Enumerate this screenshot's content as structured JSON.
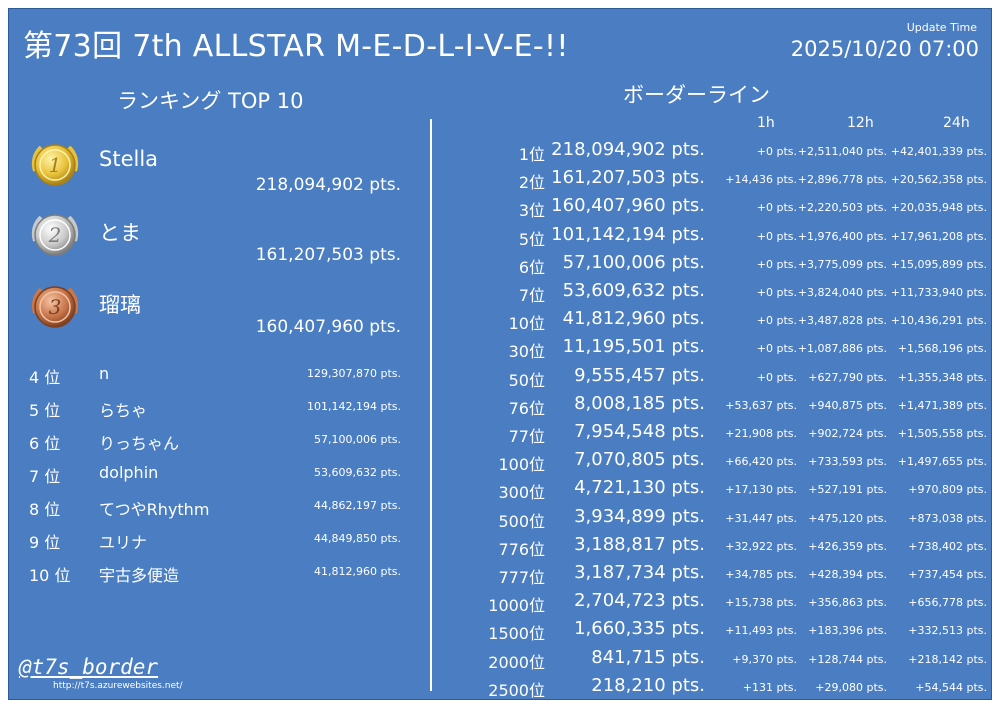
{
  "header": {
    "title": "第73回 7th ALLSTAR M-E-D-L-I-V-E-!!",
    "update_label": "Update Time",
    "update_time": "2025/10/20 07:00"
  },
  "ranking": {
    "heading": "ランキング TOP 10",
    "top3": [
      {
        "medal": "gold",
        "medal_text": "1",
        "name": "Stella",
        "score": "218,094,902 pts."
      },
      {
        "medal": "silver",
        "medal_text": "2",
        "name": "とま",
        "score": "161,207,503 pts."
      },
      {
        "medal": "bronze",
        "medal_text": "3",
        "name": "瑠璃",
        "score": "160,407,960 pts."
      }
    ],
    "rows": [
      {
        "rank": "4 位",
        "name": "n",
        "score": "129,307,870 pts."
      },
      {
        "rank": "5 位",
        "name": "らちゃ",
        "score": "101,142,194 pts."
      },
      {
        "rank": "6 位",
        "name": "りっちゃん",
        "score": "57,100,006 pts."
      },
      {
        "rank": "7 位",
        "name": "dolphin",
        "score": "53,609,632 pts."
      },
      {
        "rank": "8 位",
        "name": "てつやRhythm",
        "score": "44,862,197 pts."
      },
      {
        "rank": "9 位",
        "name": "ユリナ",
        "score": "44,849,850 pts."
      },
      {
        "rank": "10 位",
        "name": "宇古多便造",
        "score": "41,812,960 pts."
      }
    ]
  },
  "border": {
    "heading": "ボーダーライン",
    "columns": [
      "1h",
      "12h",
      "24h"
    ],
    "rows": [
      {
        "rank": "1位",
        "score": "218,094,902 pts.",
        "d1": "+0 pts.",
        "d12": "+2,511,040 pts.",
        "d24": "+42,401,339 pts."
      },
      {
        "rank": "2位",
        "score": "161,207,503 pts.",
        "d1": "+14,436 pts.",
        "d12": "+2,896,778 pts.",
        "d24": "+20,562,358 pts."
      },
      {
        "rank": "3位",
        "score": "160,407,960 pts.",
        "d1": "+0 pts.",
        "d12": "+2,220,503 pts.",
        "d24": "+20,035,948 pts."
      },
      {
        "rank": "5位",
        "score": "101,142,194 pts.",
        "d1": "+0 pts.",
        "d12": "+1,976,400 pts.",
        "d24": "+17,961,208 pts."
      },
      {
        "rank": "6位",
        "score": "57,100,006 pts.",
        "d1": "+0 pts.",
        "d12": "+3,775,099 pts.",
        "d24": "+15,095,899 pts."
      },
      {
        "rank": "7位",
        "score": "53,609,632 pts.",
        "d1": "+0 pts.",
        "d12": "+3,824,040 pts.",
        "d24": "+11,733,940 pts."
      },
      {
        "rank": "10位",
        "score": "41,812,960 pts.",
        "d1": "+0 pts.",
        "d12": "+3,487,828 pts.",
        "d24": "+10,436,291 pts."
      },
      {
        "rank": "30位",
        "score": "11,195,501 pts.",
        "d1": "+0 pts.",
        "d12": "+1,087,886 pts.",
        "d24": "+1,568,196 pts."
      },
      {
        "rank": "50位",
        "score": "9,555,457 pts.",
        "d1": "+0 pts.",
        "d12": "+627,790 pts.",
        "d24": "+1,355,348 pts."
      },
      {
        "rank": "76位",
        "score": "8,008,185 pts.",
        "d1": "+53,637 pts.",
        "d12": "+940,875 pts.",
        "d24": "+1,471,389 pts."
      },
      {
        "rank": "77位",
        "score": "7,954,548 pts.",
        "d1": "+21,908 pts.",
        "d12": "+902,724 pts.",
        "d24": "+1,505,558 pts."
      },
      {
        "rank": "100位",
        "score": "7,070,805 pts.",
        "d1": "+66,420 pts.",
        "d12": "+733,593 pts.",
        "d24": "+1,497,655 pts."
      },
      {
        "rank": "300位",
        "score": "4,721,130 pts.",
        "d1": "+17,130 pts.",
        "d12": "+527,191 pts.",
        "d24": "+970,809 pts."
      },
      {
        "rank": "500位",
        "score": "3,934,899 pts.",
        "d1": "+31,447 pts.",
        "d12": "+475,120 pts.",
        "d24": "+873,038 pts."
      },
      {
        "rank": "776位",
        "score": "3,188,817 pts.",
        "d1": "+32,922 pts.",
        "d12": "+426,359 pts.",
        "d24": "+738,402 pts."
      },
      {
        "rank": "777位",
        "score": "3,187,734 pts.",
        "d1": "+34,785 pts.",
        "d12": "+428,394 pts.",
        "d24": "+737,454 pts."
      },
      {
        "rank": "1000位",
        "score": "2,704,723 pts.",
        "d1": "+15,738 pts.",
        "d12": "+356,863 pts.",
        "d24": "+656,778 pts."
      },
      {
        "rank": "1500位",
        "score": "1,660,335 pts.",
        "d1": "+11,493 pts.",
        "d12": "+183,396 pts.",
        "d24": "+332,513 pts."
      },
      {
        "rank": "2000位",
        "score": "841,715 pts.",
        "d1": "+9,370 pts.",
        "d12": "+128,744 pts.",
        "d24": "+218,142 pts."
      },
      {
        "rank": "2500位",
        "score": "218,210 pts.",
        "d1": "+131 pts.",
        "d12": "+29,080 pts.",
        "d24": "+54,544 pts."
      }
    ]
  },
  "footer": {
    "handle": "@t7s_border",
    "url": "http://t7s.azurewebsites.net/"
  },
  "colors": {
    "background": "#4a7dc1",
    "gold": "#e8c23a",
    "silver": "#c9c9c9",
    "bronze": "#c8764a"
  }
}
